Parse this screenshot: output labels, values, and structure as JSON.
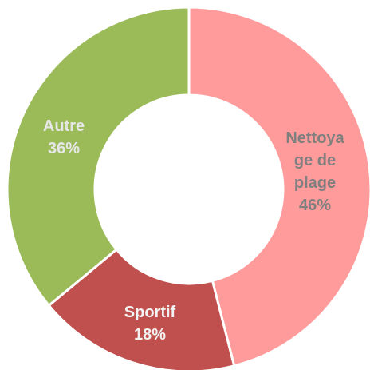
{
  "chart_data": {
    "type": "donut",
    "categories": [
      "Nettoyage de plage",
      "Sportif",
      "Autre"
    ],
    "values": [
      46,
      18,
      36
    ],
    "value_labels": [
      "46%",
      "18%",
      "36%"
    ],
    "colors": [
      "#ff9b9b",
      "#c0504d",
      "#9bbb59"
    ]
  }
}
